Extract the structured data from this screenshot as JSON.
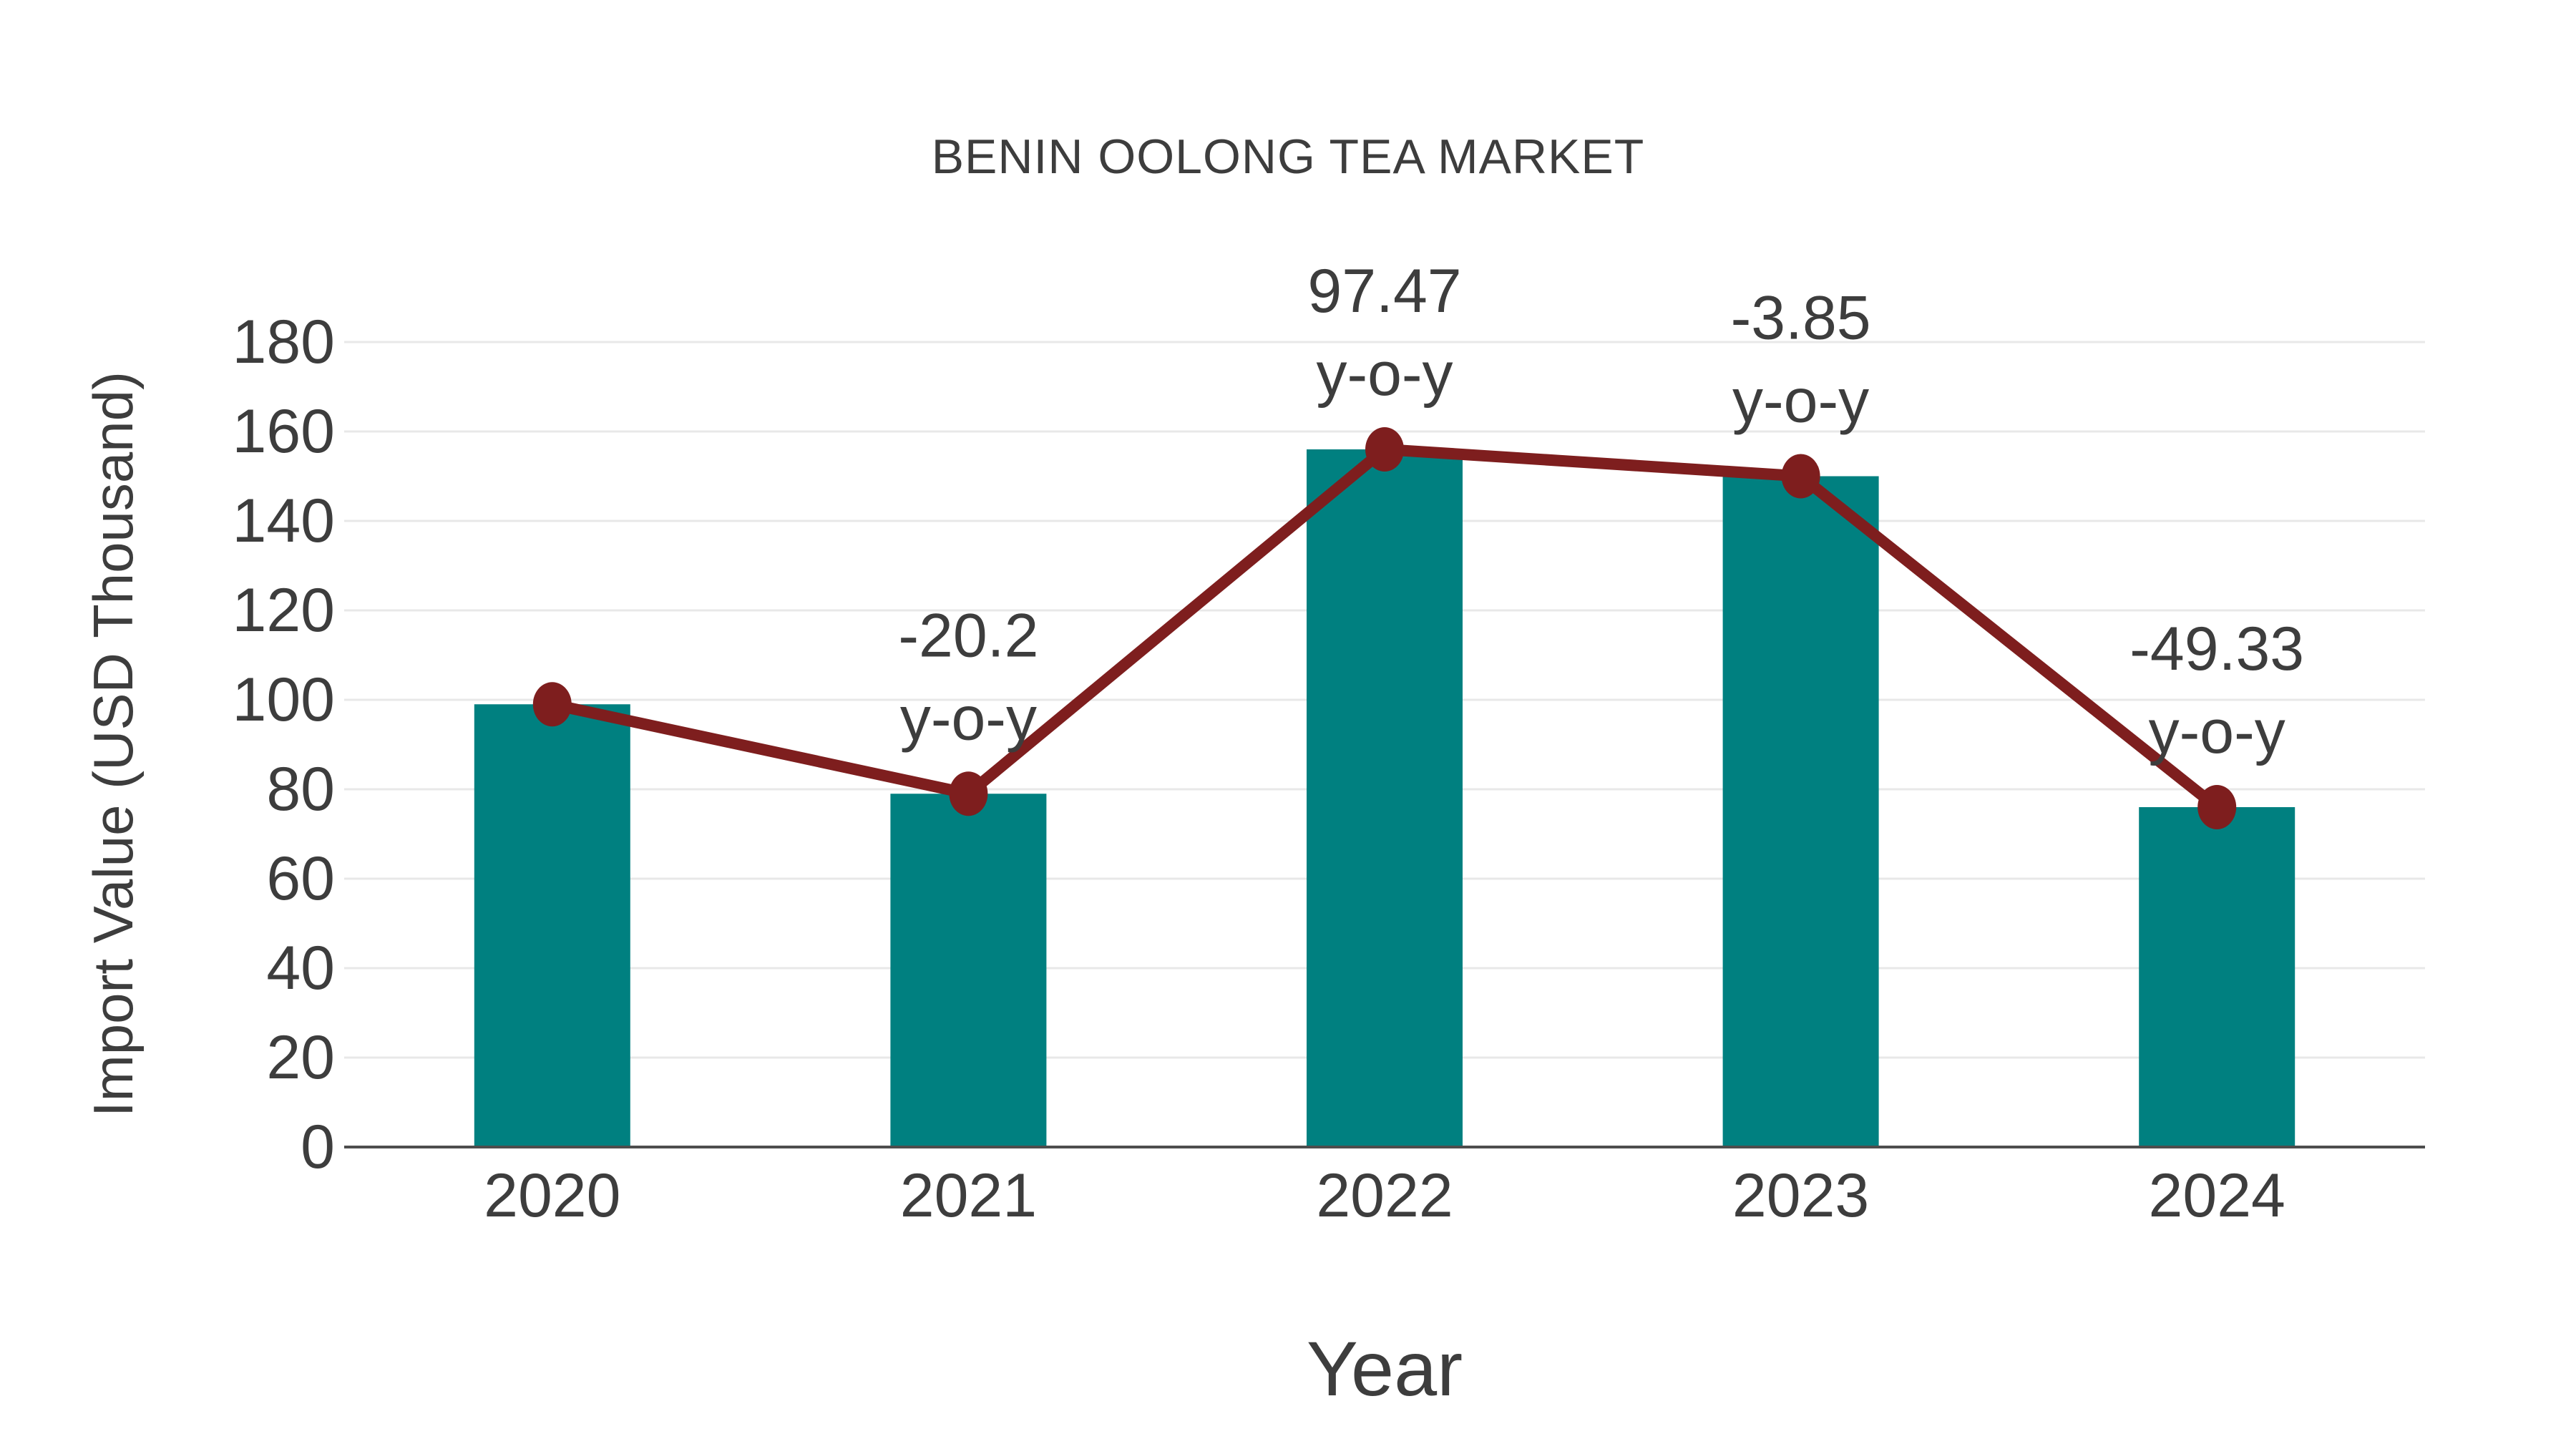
{
  "page": {
    "background": "#ffffff"
  },
  "chart_data": {
    "type": "bar",
    "title": "BENIN OOLONG TEA MARKET",
    "xlabel": "Year",
    "ylabel": "Import Value (USD Thousand)",
    "categories": [
      "2020",
      "2021",
      "2022",
      "2023",
      "2024"
    ],
    "series": [
      {
        "name": "Import Value bars",
        "type": "bar",
        "values": [
          99,
          79,
          156,
          150,
          76
        ],
        "color": "#008080"
      },
      {
        "name": "Import Value trend line with markers",
        "type": "line",
        "values": [
          99,
          79,
          156,
          150,
          76
        ],
        "color": "#7e1e1e"
      }
    ],
    "annotations": [
      {
        "category": "2021",
        "line1": "-20.2",
        "line2": "y-o-y"
      },
      {
        "category": "2022",
        "line1": "97.47",
        "line2": "y-o-y"
      },
      {
        "category": "2023",
        "line1": "-3.85",
        "line2": "y-o-y"
      },
      {
        "category": "2024",
        "line1": "-49.33",
        "line2": "y-o-y"
      }
    ],
    "yticks": [
      0,
      20,
      40,
      60,
      80,
      100,
      120,
      140,
      160,
      180
    ],
    "ylim": [
      0,
      180
    ],
    "grid": "horizontal",
    "legend": "none",
    "colors": {
      "bar": "#008080",
      "line": "#7e1e1e",
      "marker": "#7e1e1e",
      "text": "#3d3d3d",
      "grid": "#e8e8e8",
      "axis": "#4d4d4d",
      "background": "#ffffff"
    }
  }
}
